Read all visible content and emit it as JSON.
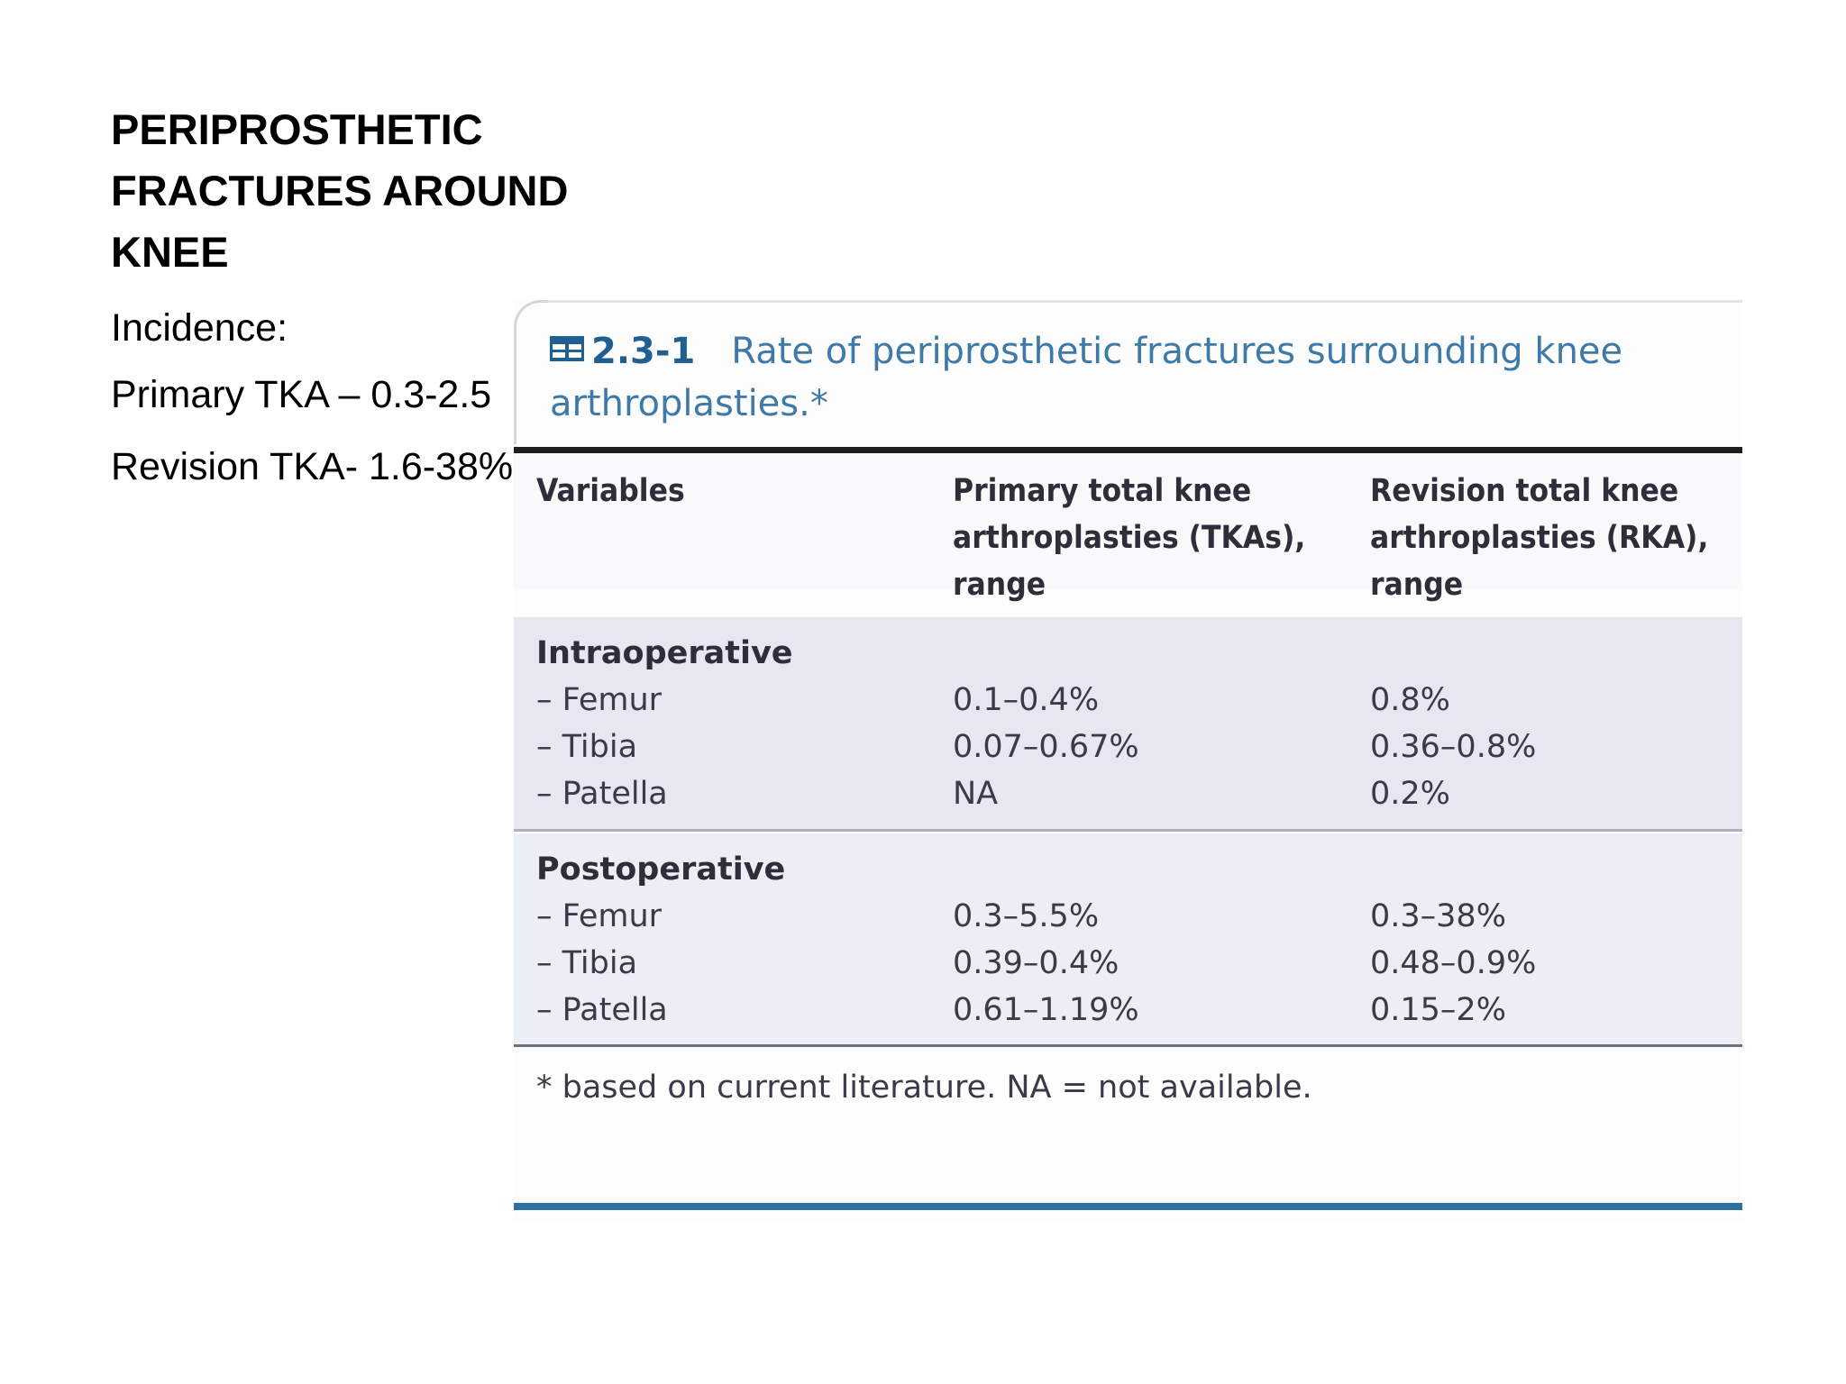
{
  "slide": {
    "title": "PERIPROSTHETIC FRACTURES AROUND KNEE",
    "bullets": [
      "Incidence:",
      "Primary TKA – 0.3-2.5",
      "Revision TKA- 1.6-38%"
    ]
  },
  "table": {
    "icon": "table-icon",
    "number": "2.3-1",
    "caption": "Rate of periprosthetic fractures surrounding knee arthroplasties.*",
    "headers": [
      "Variables",
      "Primary total knee arthroplasties (TKAs), range",
      "Revision total knee arthroplasties (RKA), range"
    ],
    "sections": [
      {
        "name": "Intraoperative",
        "rows": [
          {
            "variable": "– Femur",
            "primary": "0.1–0.4%",
            "revision": "0.8%"
          },
          {
            "variable": "– Tibia",
            "primary": "0.07–0.67%",
            "revision": "0.36–0.8%"
          },
          {
            "variable": "– Patella",
            "primary": "NA",
            "revision": "0.2%"
          }
        ]
      },
      {
        "name": "Postoperative",
        "rows": [
          {
            "variable": "– Femur",
            "primary": "0.3–5.5%",
            "revision": "0.3–38%"
          },
          {
            "variable": "– Tibia",
            "primary": "0.39–0.4%",
            "revision": "0.48–0.9%"
          },
          {
            "variable": "– Patella",
            "primary": "0.61–1.19%",
            "revision": "0.15–2%"
          }
        ]
      }
    ],
    "footnote": "* based on current literature. NA = not available."
  },
  "colors": {
    "caption": "#3d7aa8",
    "number": "#1f5f92",
    "section_band": "#e6e7f1",
    "bottom_rule": "#2c6fa0"
  }
}
